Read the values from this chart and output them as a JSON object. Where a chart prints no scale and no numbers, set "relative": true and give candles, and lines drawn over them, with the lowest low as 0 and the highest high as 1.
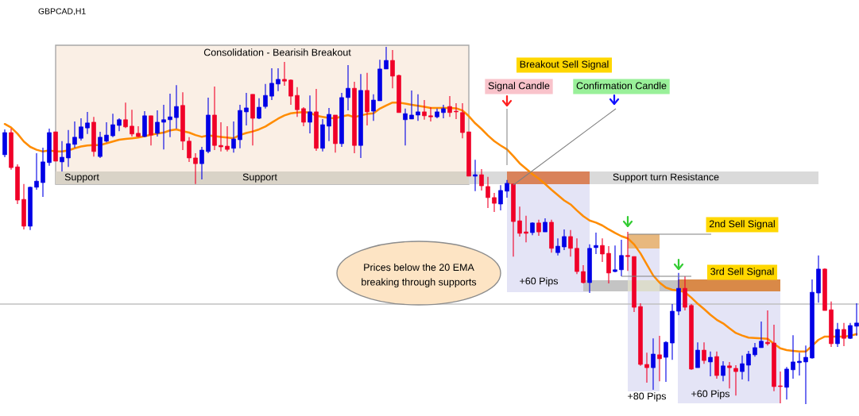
{
  "chart_data": {
    "type": "candlestick",
    "title": "GBPCAD,H1",
    "relative": true,
    "categories": [
      null,
      null,
      null,
      null,
      null,
      null,
      null,
      null,
      null,
      null,
      null,
      null,
      null,
      null,
      null,
      null,
      null,
      null,
      null,
      null,
      null,
      null,
      null,
      null,
      null,
      null,
      null,
      null,
      null,
      null,
      null,
      null,
      null,
      null,
      null,
      null,
      null,
      null,
      null,
      null,
      null,
      null,
      null,
      null,
      null,
      null,
      null,
      null,
      null,
      null,
      null,
      null,
      null,
      null,
      null,
      null,
      null,
      null,
      null,
      null,
      null,
      null,
      null,
      null,
      null,
      null,
      null,
      null,
      null,
      null,
      null,
      null,
      null,
      null,
      null,
      null,
      null,
      null,
      null,
      null,
      null,
      null,
      null,
      null,
      null,
      null,
      null,
      null,
      null,
      null,
      null,
      null,
      null,
      null,
      null,
      null,
      null,
      null,
      null,
      null,
      null,
      null,
      null,
      null,
      null,
      null,
      null,
      null,
      null,
      null,
      null,
      null,
      null,
      null,
      null,
      null,
      null,
      null,
      null,
      null,
      null,
      null,
      null,
      null,
      null,
      null,
      null,
      null,
      null,
      null,
      null,
      null,
      null,
      null,
      null
    ],
    "ohlc": [
      [
        0.698,
        0.769,
        0.691,
        0.76
      ],
      [
        0.76,
        0.771,
        0.656,
        0.662
      ],
      [
        0.664,
        0.671,
        0.56,
        0.571
      ],
      [
        0.573,
        0.616,
        0.489,
        0.498
      ],
      [
        0.498,
        0.609,
        0.487,
        0.607
      ],
      [
        0.607,
        0.702,
        0.6,
        0.624
      ],
      [
        0.62,
        0.718,
        0.58,
        0.678
      ],
      [
        0.676,
        0.771,
        0.667,
        0.76
      ],
      [
        0.762,
        0.762,
        0.68,
        0.68
      ],
      [
        0.678,
        0.736,
        0.651,
        0.691
      ],
      [
        0.689,
        0.767,
        0.664,
        0.729
      ],
      [
        0.727,
        0.791,
        0.718,
        0.747
      ],
      [
        0.744,
        0.8,
        0.738,
        0.776
      ],
      [
        0.773,
        0.818,
        0.756,
        0.787
      ],
      [
        0.789,
        0.804,
        0.693,
        0.707
      ],
      [
        0.693,
        0.762,
        0.689,
        0.747
      ],
      [
        0.736,
        0.789,
        0.733,
        0.753
      ],
      [
        0.751,
        0.813,
        0.747,
        0.782
      ],
      [
        0.78,
        0.8,
        0.764,
        0.796
      ],
      [
        0.796,
        0.844,
        0.773,
        0.776
      ],
      [
        0.778,
        0.824,
        0.749,
        0.756
      ],
      [
        0.758,
        0.778,
        0.747,
        0.749
      ],
      [
        0.749,
        0.82,
        0.747,
        0.807
      ],
      [
        0.807,
        0.807,
        0.724,
        0.753
      ],
      [
        0.758,
        0.822,
        0.749,
        0.789
      ],
      [
        0.789,
        0.838,
        0.713,
        0.796
      ],
      [
        0.796,
        0.869,
        0.747,
        0.804
      ],
      [
        0.802,
        0.893,
        0.771,
        0.833
      ],
      [
        0.836,
        0.873,
        0.711,
        0.736
      ],
      [
        0.736,
        0.747,
        0.678,
        0.689
      ],
      [
        0.689,
        0.702,
        0.616,
        0.673
      ],
      [
        0.673,
        0.72,
        0.629,
        0.711
      ],
      [
        0.707,
        0.858,
        0.702,
        0.809
      ],
      [
        0.809,
        0.889,
        0.711,
        0.724
      ],
      [
        0.724,
        0.789,
        0.707,
        0.72
      ],
      [
        0.722,
        0.778,
        0.707,
        0.713
      ],
      [
        0.716,
        0.791,
        0.704,
        0.742
      ],
      [
        0.74,
        0.838,
        0.716,
        0.822
      ],
      [
        0.818,
        0.871,
        0.78,
        0.829
      ],
      [
        0.867,
        0.867,
        0.724,
        0.8
      ],
      [
        0.8,
        0.856,
        0.798,
        0.831
      ],
      [
        0.833,
        0.896,
        0.827,
        0.864
      ],
      [
        0.862,
        0.94,
        0.851,
        0.898
      ],
      [
        0.896,
        0.94,
        0.876,
        0.909
      ],
      [
        0.909,
        0.958,
        0.891,
        0.904
      ],
      [
        0.907,
        0.909,
        0.838,
        0.862
      ],
      [
        0.864,
        0.887,
        0.804,
        0.824
      ],
      [
        0.827,
        0.831,
        0.778,
        0.789
      ],
      [
        0.789,
        0.864,
        0.758,
        0.818
      ],
      [
        0.818,
        0.882,
        0.709,
        0.716
      ],
      [
        0.716,
        0.798,
        0.707,
        0.782
      ],
      [
        0.778,
        0.829,
        0.736,
        0.811
      ],
      [
        0.809,
        0.809,
        0.704,
        0.729
      ],
      [
        0.729,
        0.871,
        0.72,
        0.858
      ],
      [
        0.858,
        0.949,
        0.822,
        0.884
      ],
      [
        0.884,
        0.902,
        0.702,
        0.724
      ],
      [
        0.724,
        0.924,
        0.689,
        0.878
      ],
      [
        0.878,
        0.927,
        0.78,
        0.818
      ],
      [
        0.82,
        0.867,
        0.793,
        0.851
      ],
      [
        0.849,
        0.964,
        0.849,
        0.938
      ],
      [
        0.938,
        1.0,
        0.938,
        0.962
      ],
      [
        0.962,
        0.991,
        0.884,
        0.918
      ],
      [
        0.92,
        0.922,
        0.816,
        0.816
      ],
      [
        0.796,
        0.827,
        0.724,
        0.813
      ],
      [
        0.798,
        0.878,
        0.798,
        0.809
      ],
      [
        0.809,
        0.867,
        0.793,
        0.818
      ],
      [
        0.818,
        0.851,
        0.796,
        0.807
      ],
      [
        0.807,
        0.831,
        0.791,
        0.804
      ],
      [
        0.804,
        0.827,
        0.8,
        0.818
      ],
      [
        0.816,
        0.838,
        0.8,
        0.827
      ],
      [
        0.833,
        0.862,
        0.804,
        0.816
      ],
      [
        0.82,
        0.842,
        0.798,
        0.818
      ],
      [
        0.816,
        0.842,
        0.744,
        0.76
      ],
      [
        0.762,
        0.762,
        0.638,
        0.638
      ],
      [
        0.638,
        0.684,
        0.596,
        0.642
      ],
      [
        0.642,
        0.658,
        0.598,
        0.611
      ],
      [
        0.609,
        0.636,
        0.549,
        0.578
      ],
      [
        0.578,
        0.591,
        0.538,
        0.562
      ],
      [
        0.56,
        0.613,
        0.542,
        0.598
      ],
      [
        0.596,
        0.627,
        0.578,
        0.618
      ],
      [
        0.616,
        0.616,
        0.413,
        0.511
      ],
      [
        0.513,
        0.553,
        0.469,
        0.478
      ],
      [
        0.482,
        0.527,
        0.453,
        0.478
      ],
      [
        0.48,
        0.509,
        0.473,
        0.507
      ],
      [
        0.507,
        0.516,
        0.471,
        0.482
      ],
      [
        0.482,
        0.52,
        0.482,
        0.509
      ],
      [
        0.509,
        0.516,
        0.424,
        0.436
      ],
      [
        0.424,
        0.464,
        0.416,
        0.442
      ],
      [
        0.44,
        0.489,
        0.431,
        0.469
      ],
      [
        0.469,
        0.487,
        0.413,
        0.436
      ],
      [
        0.436,
        0.464,
        0.364,
        0.371
      ],
      [
        0.371,
        0.389,
        0.338,
        0.34
      ],
      [
        0.34,
        0.447,
        0.311,
        0.436
      ],
      [
        0.438,
        0.48,
        0.42,
        0.444
      ],
      [
        0.444,
        0.464,
        0.398,
        0.42
      ],
      [
        0.422,
        0.442,
        0.338,
        0.367
      ],
      [
        0.371,
        0.444,
        0.369,
        0.376
      ],
      [
        0.376,
        0.46,
        0.358,
        0.416
      ],
      [
        0.416,
        0.482,
        0.373,
        0.413
      ],
      [
        0.413,
        0.413,
        0.258,
        0.271
      ],
      [
        0.273,
        0.282,
        0.107,
        0.111
      ],
      [
        0.111,
        0.144,
        0.06,
        0.102
      ],
      [
        0.102,
        0.184,
        0.04,
        0.14
      ],
      [
        0.138,
        0.191,
        0.064,
        0.127
      ],
      [
        0.131,
        0.176,
        0.062,
        0.173
      ],
      [
        0.171,
        0.28,
        0.124,
        0.26
      ],
      [
        0.26,
        0.367,
        0.249,
        0.324
      ],
      [
        0.324,
        0.358,
        0.262,
        0.271
      ],
      [
        0.276,
        0.28,
        0.096,
        0.098
      ],
      [
        0.102,
        0.173,
        0.102,
        0.151
      ],
      [
        0.151,
        0.173,
        0.113,
        0.122
      ],
      [
        0.118,
        0.147,
        0.078,
        0.131
      ],
      [
        0.133,
        0.147,
        0.071,
        0.08
      ],
      [
        0.08,
        0.12,
        0.064,
        0.107
      ],
      [
        0.107,
        0.118,
        0.044,
        0.102
      ],
      [
        0.1,
        0.109,
        0.024,
        0.091
      ],
      [
        0.091,
        0.136,
        0.069,
        0.113
      ],
      [
        0.109,
        0.149,
        0.064,
        0.14
      ],
      [
        0.138,
        0.171,
        0.133,
        0.158
      ],
      [
        0.158,
        0.231,
        0.158,
        0.176
      ],
      [
        0.173,
        0.262,
        0.164,
        0.169
      ],
      [
        0.171,
        0.222,
        0.036,
        0.049
      ],
      [
        0.051,
        0.091,
        0.002,
        0.049
      ],
      [
        0.047,
        0.104,
        0.013,
        0.098
      ],
      [
        0.096,
        0.193,
        0.071,
        0.118
      ],
      [
        0.116,
        0.144,
        0.08,
        0.12
      ],
      [
        0.118,
        0.164,
        0.0,
        0.131
      ],
      [
        0.129,
        0.349,
        0.127,
        0.313
      ],
      [
        0.311,
        0.416,
        0.284,
        0.378
      ],
      [
        0.378,
        0.38,
        0.262,
        0.262
      ],
      [
        0.264,
        0.287,
        0.16,
        0.169
      ],
      [
        0.169,
        0.227,
        0.16,
        0.209
      ],
      [
        0.209,
        0.227,
        0.162,
        0.184
      ],
      [
        0.184,
        0.227,
        0.182,
        0.22
      ],
      [
        0.218,
        0.282,
        0.191,
        0.227
      ]
    ],
    "colors": [
      "#0000e6",
      "#f00028",
      "#f00028",
      "#f00028",
      "#0000e6",
      "#0000e6",
      "#0000e6",
      "#0000e6",
      "#f00028",
      "#0000e6",
      "#0000e6",
      "#0000e6",
      "#0000e6",
      "#0000e6",
      "#f00028",
      "#0000e6",
      "#0000e6",
      "#0000e6",
      "#0000e6",
      "#f00028",
      "#f00028",
      "#f00028",
      "#0000e6",
      "#f00028",
      "#0000e6",
      "#0000e6",
      "#0000e6",
      "#0000e6",
      "#f00028",
      "#f00028",
      "#f00028",
      "#0000e6",
      "#0000e6",
      "#f00028",
      "#f00028",
      "#f00028",
      "#0000e6",
      "#0000e6",
      "#0000e6",
      "#f00028",
      "#0000e6",
      "#0000e6",
      "#0000e6",
      "#0000e6",
      "#f00028",
      "#f00028",
      "#f00028",
      "#f00028",
      "#0000e6",
      "#f00028",
      "#0000e6",
      "#0000e6",
      "#f00028",
      "#0000e6",
      "#0000e6",
      "#f00028",
      "#0000e6",
      "#f00028",
      "#0000e6",
      "#0000e6",
      "#0000e6",
      "#f00028",
      "#f00028",
      "#0000e6",
      "#0000e6",
      "#0000e6",
      "#f00028",
      "#f00028",
      "#0000e6",
      "#0000e6",
      "#f00028",
      "#f00028",
      "#f00028",
      "#f00028",
      "#0000e6",
      "#f00028",
      "#f00028",
      "#f00028",
      "#0000e6",
      "#0000e6",
      "#f00028",
      "#f00028",
      "#f00028",
      "#0000e6",
      "#f00028",
      "#0000e6",
      "#f00028",
      "#0000e6",
      "#0000e6",
      "#f00028",
      "#f00028",
      "#f00028",
      "#0000e6",
      "#0000e6",
      "#f00028",
      "#f00028",
      "#0000e6",
      "#0000e6",
      "#f00028",
      "#f00028",
      "#f00028",
      "#f00028",
      "#0000e6",
      "#f00028",
      "#0000e6",
      "#0000e6",
      "#0000e6",
      "#f00028",
      "#f00028",
      "#0000e6",
      "#f00028",
      "#0000e6",
      "#f00028",
      "#0000e6",
      "#f00028",
      "#f00028",
      "#0000e6",
      "#0000e6",
      "#0000e6",
      "#0000e6",
      "#f00028",
      "#f00028",
      "#f00028",
      "#0000e6",
      "#0000e6",
      "#0000e6",
      "#0000e6",
      "#0000e6",
      "#0000e6",
      "#f00028",
      "#f00028",
      "#0000e6",
      "#f00028",
      "#0000e6",
      "#0000e6"
    ],
    "series": [
      {
        "type": "line",
        "color": "#ff8c00",
        "values": [
          0.784,
          0.774,
          0.757,
          0.735,
          0.72,
          0.712,
          0.707,
          0.71,
          0.707,
          0.707,
          0.71,
          0.716,
          0.721,
          0.724,
          0.725,
          0.725,
          0.73,
          0.735,
          0.74,
          0.742,
          0.744,
          0.746,
          0.75,
          0.754,
          0.757,
          0.76,
          0.766,
          0.769,
          0.764,
          0.76,
          0.753,
          0.748,
          0.752,
          0.75,
          0.748,
          0.746,
          0.744,
          0.753,
          0.759,
          0.763,
          0.769,
          0.777,
          0.788,
          0.799,
          0.808,
          0.814,
          0.816,
          0.817,
          0.816,
          0.807,
          0.804,
          0.801,
          0.8,
          0.805,
          0.809,
          0.803,
          0.808,
          0.812,
          0.814,
          0.827,
          0.836,
          0.844,
          0.844,
          0.841,
          0.838,
          0.835,
          0.832,
          0.829,
          0.829,
          0.829,
          0.829,
          0.828,
          0.822,
          0.806,
          0.786,
          0.77,
          0.752,
          0.736,
          0.724,
          0.713,
          0.694,
          0.674,
          0.659,
          0.644,
          0.631,
          0.616,
          0.6,
          0.585,
          0.57,
          0.559,
          0.542,
          0.526,
          0.514,
          0.508,
          0.5,
          0.489,
          0.479,
          0.47,
          0.464,
          0.447,
          0.422,
          0.391,
          0.36,
          0.34,
          0.326,
          0.32,
          0.318,
          0.313,
          0.298,
          0.281,
          0.266,
          0.25,
          0.236,
          0.226,
          0.212,
          0.199,
          0.192,
          0.186,
          0.185,
          0.184,
          0.183,
          0.169,
          0.156,
          0.151,
          0.149,
          0.147,
          0.147,
          0.163,
          0.18,
          0.189,
          0.189,
          0.189,
          0.189,
          0.191,
          0.196
        ]
      }
    ],
    "ref_lines": [
      {
        "axis": "y",
        "value": 0.28,
        "color": "#c0c0c0"
      }
    ],
    "annotations": [
      "Consolidation - Bearisih Breakout",
      "Support",
      "Support",
      "Support turn Resistance",
      "Breakout Sell Signal",
      "Signal Candle",
      "Confirmation Candle",
      "2nd Sell Signal",
      "3rd Sell Signal",
      "+60 Pips",
      "+80 Pips",
      "+60 Pips",
      "Prices below the 20 EMA\nbreaking through supports"
    ]
  }
}
